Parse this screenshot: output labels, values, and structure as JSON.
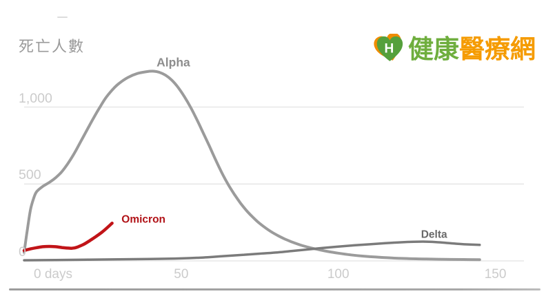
{
  "logo": {
    "icon_letter": "H",
    "text_green": "健康",
    "text_orange": "醫療網",
    "green": "#6fae3e",
    "orange": "#f59b00",
    "heart_green": "#55a03c",
    "heart_orange": "#f08c00"
  },
  "chart_data": {
    "type": "line",
    "ylabel": "死亡人數",
    "xlabel": "days",
    "xlim": [
      0,
      157
    ],
    "ylim": [
      0,
      1350
    ],
    "grid": "horizontal",
    "x_ticks": [
      {
        "day": 0,
        "label": "0 days"
      },
      {
        "day": 50,
        "label": "50"
      },
      {
        "day": 100,
        "label": "100"
      },
      {
        "day": 150,
        "label": "150"
      }
    ],
    "y_ticks": [
      {
        "value": 0,
        "label": "0"
      },
      {
        "value": 500,
        "label": "500"
      },
      {
        "value": 1000,
        "label": "1,000"
      }
    ],
    "series": [
      {
        "name": "Alpha",
        "color": "#9b9b9b",
        "label_color": "#8d8d8d",
        "stroke_width": 4,
        "label_day": 47.5,
        "label_value": 1290,
        "points": [
          [
            0,
            55
          ],
          [
            1,
            200
          ],
          [
            2,
            330
          ],
          [
            3,
            405
          ],
          [
            4,
            450
          ],
          [
            6,
            485
          ],
          [
            8,
            510
          ],
          [
            10,
            540
          ],
          [
            12,
            580
          ],
          [
            14,
            635
          ],
          [
            16,
            700
          ],
          [
            18,
            775
          ],
          [
            20,
            850
          ],
          [
            22,
            925
          ],
          [
            24,
            995
          ],
          [
            26,
            1060
          ],
          [
            28,
            1110
          ],
          [
            30,
            1150
          ],
          [
            33,
            1192
          ],
          [
            36,
            1218
          ],
          [
            39,
            1230
          ],
          [
            41,
            1233
          ],
          [
            43,
            1226
          ],
          [
            45,
            1207
          ],
          [
            47,
            1175
          ],
          [
            49,
            1128
          ],
          [
            51,
            1068
          ],
          [
            53,
            998
          ],
          [
            55,
            918
          ],
          [
            57,
            832
          ],
          [
            59,
            745
          ],
          [
            61,
            655
          ],
          [
            63,
            570
          ],
          [
            65,
            495
          ],
          [
            67,
            430
          ],
          [
            69,
            372
          ],
          [
            71,
            322
          ],
          [
            73,
            280
          ],
          [
            75,
            243
          ],
          [
            77,
            212
          ],
          [
            79,
            185
          ],
          [
            81,
            162
          ],
          [
            83,
            142
          ],
          [
            85,
            125
          ],
          [
            88,
            103
          ],
          [
            91,
            86
          ],
          [
            94,
            72
          ],
          [
            97,
            60
          ],
          [
            100,
            50
          ],
          [
            104,
            39
          ],
          [
            108,
            31
          ],
          [
            112,
            25
          ],
          [
            117,
            19
          ],
          [
            122,
            15
          ],
          [
            128,
            12
          ],
          [
            134,
            10
          ],
          [
            140,
            9
          ],
          [
            145,
            8
          ]
        ]
      },
      {
        "name": "Delta",
        "color": "#7b7b7b",
        "label_color": "#696969",
        "stroke_width": 3.5,
        "label_day": 130.5,
        "label_value": 168,
        "points": [
          [
            0,
            4
          ],
          [
            10,
            6
          ],
          [
            20,
            8
          ],
          [
            30,
            10
          ],
          [
            40,
            12
          ],
          [
            50,
            16
          ],
          [
            55,
            20
          ],
          [
            60,
            26
          ],
          [
            65,
            33
          ],
          [
            70,
            40
          ],
          [
            75,
            47
          ],
          [
            80,
            54
          ],
          [
            85,
            64
          ],
          [
            90,
            74
          ],
          [
            95,
            84
          ],
          [
            100,
            93
          ],
          [
            105,
            101
          ],
          [
            110,
            108
          ],
          [
            115,
            115
          ],
          [
            120,
            121
          ],
          [
            124,
            124
          ],
          [
            128,
            125
          ],
          [
            132,
            121
          ],
          [
            136,
            114
          ],
          [
            140,
            108
          ],
          [
            145,
            104
          ]
        ]
      },
      {
        "name": "Omicron",
        "color": "#c11418",
        "label_color": "#b11217",
        "stroke_width": 4.5,
        "label_day": 38,
        "label_value": 268,
        "points": [
          [
            0,
            67
          ],
          [
            2,
            78
          ],
          [
            4,
            86
          ],
          [
            6,
            92
          ],
          [
            8,
            94
          ],
          [
            10,
            92
          ],
          [
            12,
            87
          ],
          [
            14,
            83
          ],
          [
            15,
            82
          ],
          [
            16,
            84
          ],
          [
            17,
            90
          ],
          [
            19,
            108
          ],
          [
            21,
            133
          ],
          [
            23,
            160
          ],
          [
            25,
            190
          ],
          [
            27,
            226
          ],
          [
            28,
            245
          ]
        ]
      }
    ]
  }
}
